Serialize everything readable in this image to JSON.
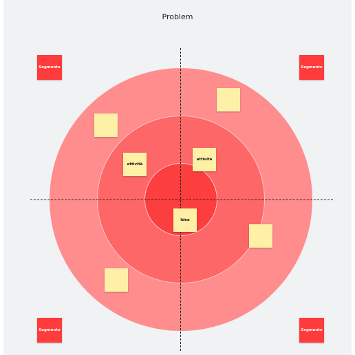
{
  "title": "Problem",
  "colors": {
    "background": "#f1f2f4",
    "outer_ring": "#ff8d8d",
    "middle_ring": "#fd6767",
    "inner_ring": "#fd3e3e",
    "segment": "#ff3b3b",
    "sticky_note": "#fff0a8"
  },
  "segments": {
    "top_left": "Segmento",
    "top_right": "Segmento",
    "bottom_left": "Segmento",
    "bottom_right": "Segmento"
  },
  "stickies": {
    "outer_top_right": "",
    "outer_top_left": "",
    "middle_left": "attività",
    "middle_right": "attività",
    "center": "Idea",
    "outer_right": "",
    "outer_bottom_left": ""
  }
}
